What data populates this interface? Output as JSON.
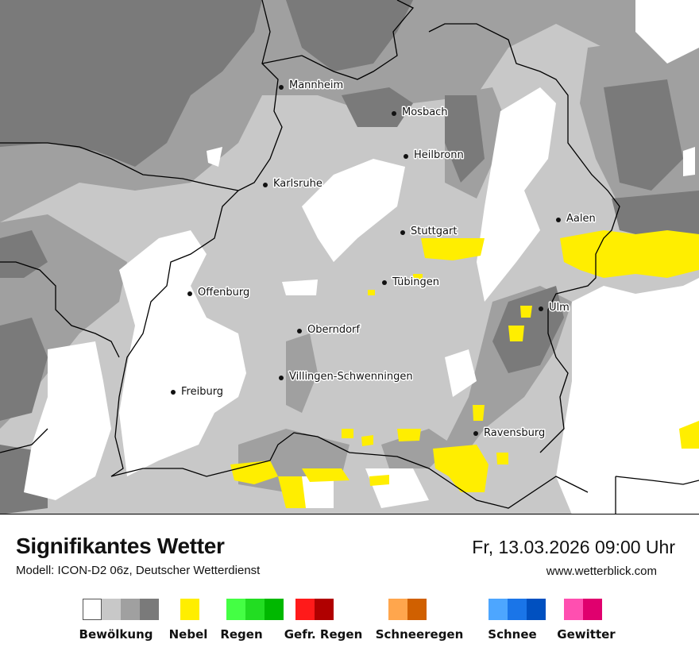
{
  "map": {
    "cities": [
      {
        "name": "Mannheim"
      },
      {
        "name": "Mosbach"
      },
      {
        "name": "Heilbronn"
      },
      {
        "name": "Karlsruhe"
      },
      {
        "name": "Aalen"
      },
      {
        "name": "Stuttgart"
      },
      {
        "name": "Tübingen"
      },
      {
        "name": "Offenburg"
      },
      {
        "name": "Ulm"
      },
      {
        "name": "Oberndorf"
      },
      {
        "name": "Villingen-Schwenningen"
      },
      {
        "name": "Freiburg"
      },
      {
        "name": "Ravensburg"
      }
    ]
  },
  "footer": {
    "title": "Signifikantes Wetter",
    "subtitle": "Modell: ICON-D2 06z, Deutscher Wetterdienst",
    "datetime": "Fr, 13.03.2026 09:00 Uhr",
    "website": "www.wetterblick.com"
  },
  "legend": [
    {
      "label": "Bewölkung",
      "colors": [
        "#ffffff",
        "#c8c8c8",
        "#a0a0a0",
        "#7a7a7a"
      ]
    },
    {
      "label": "Nebel",
      "colors": [
        "#ffee00"
      ]
    },
    {
      "label": "Regen",
      "colors": [
        "#44ff44",
        "#22dd22",
        "#00b800"
      ]
    },
    {
      "label": "Gefr. Regen",
      "colors": [
        "#ff1a1a",
        "#b00000"
      ]
    },
    {
      "label": "Schneeregen",
      "colors": [
        "#ffa64d",
        "#d06000"
      ]
    },
    {
      "label": "Schnee",
      "colors": [
        "#4da6ff",
        "#1a75e8",
        "#0050c0"
      ]
    },
    {
      "label": "Gewitter",
      "colors": [
        "#ff4fb0",
        "#e0006e"
      ]
    }
  ],
  "colors": {
    "cloud_white": "#ffffff",
    "cloud_light": "#c8c8c8",
    "cloud_medium": "#a0a0a0",
    "cloud_dark": "#7a7a7a",
    "fog": "#ffee00",
    "border": "#000000"
  }
}
